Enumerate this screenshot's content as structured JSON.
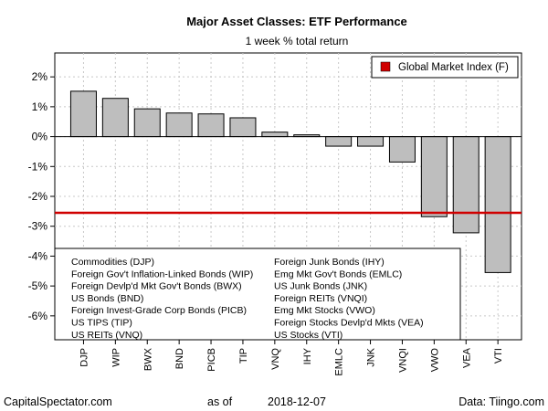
{
  "chart_data": {
    "type": "bar",
    "title": "Major Asset Classes: ETF Performance",
    "subtitle": "1 week % total return",
    "categories": [
      "DJP",
      "WIP",
      "BWX",
      "BND",
      "PICB",
      "TIP",
      "VNQ",
      "IHY",
      "EMLC",
      "JNK",
      "VNQI",
      "VWO",
      "VEA",
      "VTI"
    ],
    "values": [
      1.52,
      1.28,
      0.93,
      0.79,
      0.76,
      0.63,
      0.15,
      0.06,
      -0.32,
      -0.32,
      -0.85,
      -2.68,
      -3.22,
      -4.55
    ],
    "ylim": [
      -6.8,
      2.8
    ],
    "yticks": [
      2,
      1,
      0,
      -1,
      -2,
      -3,
      -4,
      -5,
      -6
    ],
    "ytick_labels": [
      "2%",
      "1%",
      "0%",
      "-1%",
      "-2%",
      "-3%",
      "-4%",
      "-5%",
      "-6%"
    ],
    "reference_line": {
      "label": "Global Market Index (F)",
      "value": -2.55,
      "color": "#d00000"
    },
    "bar_color": "#bebebe",
    "grid": true,
    "legend_position": "top-right",
    "key_left": [
      "Commodities (DJP)",
      "Foreign Gov't Inflation-Linked Bonds (WIP)",
      "Foreign Devlp'd Mkt Gov't Bonds (BWX)",
      "US Bonds (BND)",
      "Foreign Invest-Grade Corp Bonds (PICB)",
      "US TIPS (TIP)",
      "US REITs (VNQ)"
    ],
    "key_right": [
      "Foreign Junk Bonds (IHY)",
      "Emg Mkt Gov't Bonds (EMLC)",
      "US Junk Bonds (JNK)",
      "Foreign REITs (VNQI)",
      "Emg Mkt Stocks (VWO)",
      "Foreign Stocks Devlp'd Mkts (VEA)",
      "US Stocks (VTI)"
    ]
  },
  "footer": {
    "source_left": "CapitalSpectator.com",
    "as_of_label": "as of",
    "date": "2018-12-07",
    "source_right": "Data: Tiingo.com"
  }
}
